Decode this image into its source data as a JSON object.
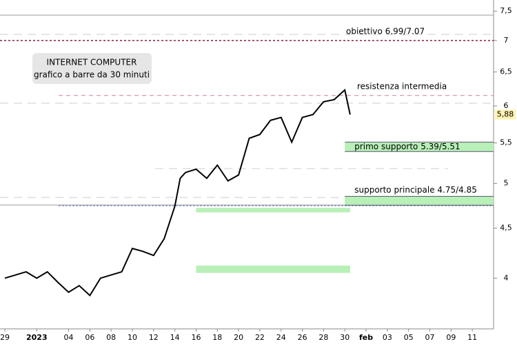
{
  "chart_data": {
    "type": "line",
    "title": "INTERNET COMPUTER",
    "subtitle": "grafico a barre da 30 minuti",
    "log_scale": true,
    "ylim": [
      3.55,
      7.7
    ],
    "yticks": [
      4,
      {
        "value": 4.5,
        "label": "4,5"
      },
      5,
      {
        "value": 5.5,
        "label": "5,5"
      },
      6,
      {
        "value": 6.5,
        "label": "6,5"
      },
      7,
      {
        "value": 7.5,
        "label": "7,5"
      }
    ],
    "xlim": [
      "2022-12-28T13:00",
      "2023-02-13T00:00"
    ],
    "xticks": [
      {
        "value": "2022-12-29T00:00",
        "label": "29"
      },
      {
        "value": "2023-01-01T00:00",
        "label": "2023"
      },
      {
        "value": "2023-01-04T00:00",
        "label": "04"
      },
      {
        "value": "2023-01-06T00:00",
        "label": "06"
      },
      {
        "value": "2023-01-08T00:00",
        "label": "08"
      },
      {
        "value": "2023-01-10T00:00",
        "label": "10"
      },
      {
        "value": "2023-01-12T00:00",
        "label": "12"
      },
      {
        "value": "2023-01-14T00:00",
        "label": "14"
      },
      {
        "value": "2023-01-16T00:00",
        "label": "16"
      },
      {
        "value": "2023-01-18T00:00",
        "label": "18"
      },
      {
        "value": "2023-01-20T00:00",
        "label": "20"
      },
      {
        "value": "2023-01-22T00:00",
        "label": "22"
      },
      {
        "value": "2023-01-24T00:00",
        "label": "24"
      },
      {
        "value": "2023-01-26T00:00",
        "label": "26"
      },
      {
        "value": "2023-01-28T00:00",
        "label": "28"
      },
      {
        "value": "2023-01-30T00:00",
        "label": "30"
      },
      {
        "value": "2023-02-01T00:00",
        "label": "feb"
      },
      {
        "value": "2023-02-03T00:00",
        "label": "03"
      },
      {
        "value": "2023-02-05T00:00",
        "label": "05"
      },
      {
        "value": "2023-02-07T00:00",
        "label": "07"
      },
      {
        "value": "2023-02-09T00:00",
        "label": "09"
      },
      {
        "value": "2023-02-11T00:00",
        "label": "11"
      }
    ],
    "series": [
      {
        "color": "#000000",
        "x": [
          "2022-12-29T00:00",
          "2022-12-30T00:00",
          "2022-12-31T00:00",
          "2023-01-01T00:00",
          "2023-01-02T00:00",
          "2023-01-03T00:00",
          "2023-01-04T00:00",
          "2023-01-05T00:00",
          "2023-01-06T00:00",
          "2023-01-07T00:00",
          "2023-01-08T00:00",
          "2023-01-09T00:00",
          "2023-01-10T00:00",
          "2023-01-11T00:00",
          "2023-01-12T00:00",
          "2023-01-13T00:00",
          "2023-01-14T00:00",
          "2023-01-14T12:00",
          "2023-01-15T00:00",
          "2023-01-16T00:00",
          "2023-01-17T00:00",
          "2023-01-18T00:00",
          "2023-01-19T00:00",
          "2023-01-20T00:00",
          "2023-01-21T00:00",
          "2023-01-22T00:00",
          "2023-01-23T00:00",
          "2023-01-24T00:00",
          "2023-01-25T00:00",
          "2023-01-26T00:00",
          "2023-01-27T00:00",
          "2023-01-28T00:00",
          "2023-01-29T00:00",
          "2023-01-30T00:00",
          "2023-01-30T12:00"
        ],
        "values": [
          4.0,
          4.03,
          4.06,
          4.0,
          4.06,
          3.96,
          3.87,
          3.93,
          3.84,
          4.0,
          4.03,
          4.06,
          4.29,
          4.26,
          4.22,
          4.39,
          4.74,
          5.06,
          5.13,
          5.17,
          5.06,
          5.22,
          5.03,
          5.1,
          5.56,
          5.61,
          5.8,
          5.84,
          5.51,
          5.84,
          5.88,
          6.06,
          6.09,
          6.23,
          5.88
        ]
      }
    ],
    "last": {
      "value": 5.88,
      "label": "5,88"
    },
    "levels": [
      {
        "label": "obiettivo 6.99/7.07",
        "value": 7.0,
        "style": "dotted",
        "color": "#8b1a4a"
      },
      {
        "label": "resistenza intermedia",
        "value": 6.15,
        "style": "dashed",
        "color": "#d08090"
      }
    ],
    "bands": [
      {
        "label": "primo supporto 5.39/5.51",
        "lo": 5.39,
        "hi": 5.51,
        "start": "2023-01-30T00:00",
        "end": "2023-02-13T00:00",
        "color": "#b8f0b8"
      },
      {
        "label": "supporto principale 4.75/4.85",
        "lo": 4.75,
        "hi": 4.85,
        "start": "2023-01-30T00:00",
        "end": "2023-02-13T00:00",
        "color": "#b8f0b8"
      },
      {
        "lo": 4.67,
        "hi": 4.72,
        "start": "2023-01-16T00:00",
        "end": "2023-01-30T12:00",
        "color": "#b8f0b8"
      },
      {
        "lo": 4.05,
        "hi": 4.12,
        "start": "2023-01-16T00:00",
        "end": "2023-01-30T12:00",
        "color": "#b8f0b8"
      }
    ]
  }
}
